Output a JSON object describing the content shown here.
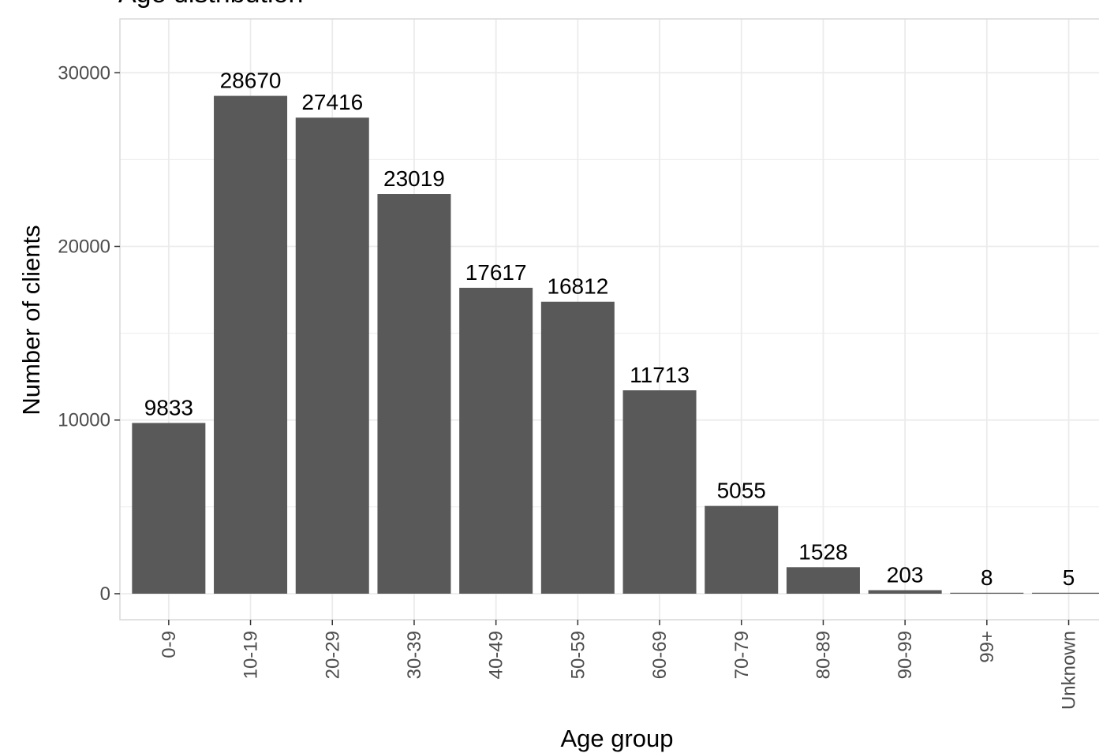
{
  "chart_data": {
    "type": "bar",
    "title": "Age distribution",
    "xlabel": "Age group",
    "ylabel": "Number of clients",
    "categories": [
      "0-9",
      "10-19",
      "20-29",
      "30-39",
      "40-49",
      "50-59",
      "60-69",
      "70-79",
      "80-89",
      "90-99",
      "99+",
      "Unknown"
    ],
    "values": [
      9833,
      28670,
      27416,
      23019,
      17617,
      16812,
      11713,
      5055,
      1528,
      203,
      8,
      5
    ],
    "data_labels": [
      "9833",
      "28670",
      "27416",
      "23019",
      "17617",
      "16812",
      "11713",
      "5055",
      "1528",
      "203",
      "8",
      "5"
    ],
    "y_ticks": [
      0,
      10000,
      20000,
      30000
    ],
    "y_tick_labels": [
      "0",
      "10000",
      "20000",
      "30000"
    ],
    "ylim": [
      -1500,
      33100
    ],
    "grid": true,
    "legend": "none",
    "colors": {
      "bar": "#595959",
      "grid": "#ebebeb",
      "panel_border": "#d9d9d9",
      "tick_label": "#4d4d4d",
      "text": "#000000"
    }
  }
}
